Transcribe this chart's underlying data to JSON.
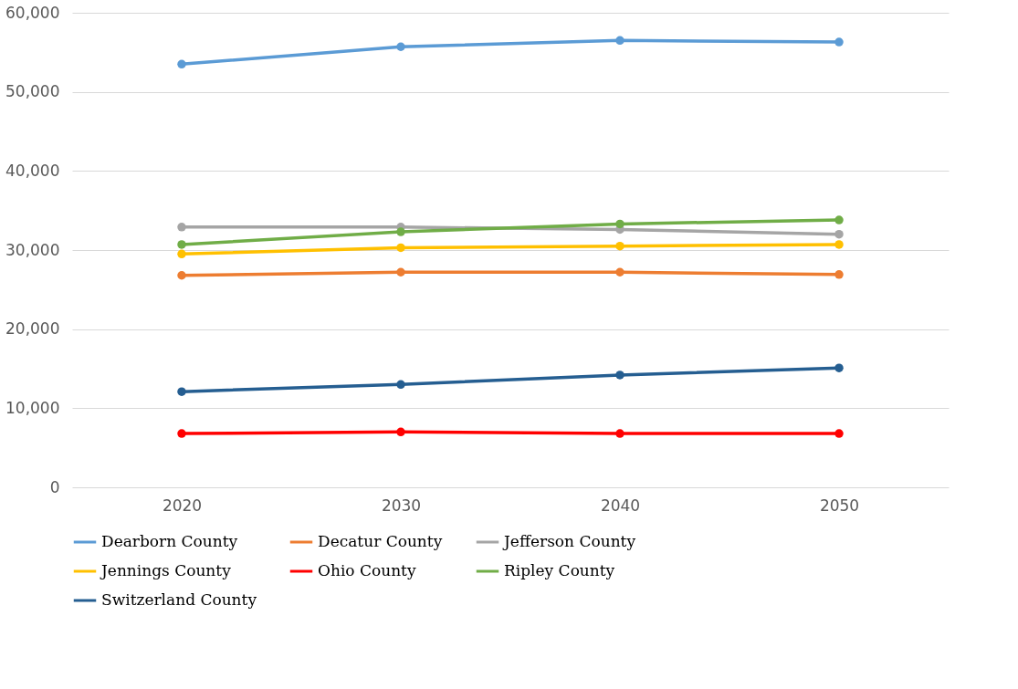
{
  "chart_data": {
    "type": "line",
    "categories": [
      "2020",
      "2030",
      "2040",
      "2050"
    ],
    "series": [
      {
        "name": "Dearborn County",
        "color": "#5b9bd5",
        "values": [
          53500,
          55700,
          56500,
          56300
        ]
      },
      {
        "name": "Decatur County",
        "color": "#ed7d31",
        "values": [
          26800,
          27200,
          27200,
          26900
        ]
      },
      {
        "name": "Jefferson County",
        "color": "#a5a5a5",
        "values": [
          32900,
          32900,
          32600,
          32000
        ]
      },
      {
        "name": "Jennings County",
        "color": "#ffc000",
        "values": [
          29500,
          30300,
          30500,
          30700
        ]
      },
      {
        "name": "Ohio County",
        "color": "#ff0000",
        "values": [
          6800,
          7000,
          6800,
          6800
        ]
      },
      {
        "name": "Ripley County",
        "color": "#70ad47",
        "values": [
          30700,
          32300,
          33300,
          33800
        ]
      },
      {
        "name": "Switzerland County",
        "color": "#255e91",
        "values": [
          12100,
          13000,
          14200,
          15100
        ]
      }
    ],
    "ylim": [
      0,
      60000
    ],
    "yticks": [
      0,
      {
        "value": 10000,
        "label": "10,000"
      },
      {
        "value": 20000,
        "label": "20,000"
      },
      {
        "value": 30000,
        "label": "30,000"
      },
      {
        "value": 40000,
        "label": "40,000"
      },
      {
        "value": 50000,
        "label": "50,000"
      },
      {
        "value": 60000,
        "label": "60,000"
      }
    ],
    "grid": "y",
    "legend": "bottom",
    "marker": "circle",
    "line_style": "solid"
  }
}
